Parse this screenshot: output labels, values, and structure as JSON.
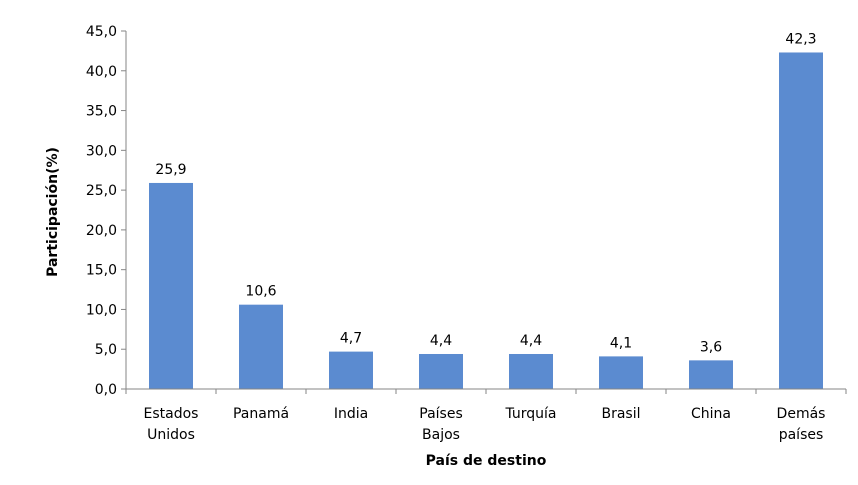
{
  "chart_data": {
    "type": "bar",
    "title": "",
    "xlabel": "País de destino",
    "ylabel": "Participación(%)",
    "ylim": [
      0,
      45
    ],
    "yticks": [
      "0,0",
      "5,0",
      "10,0",
      "15,0",
      "20,0",
      "25,0",
      "30,0",
      "35,0",
      "40,0",
      "45,0"
    ],
    "categories": [
      [
        "Estados",
        "Unidos"
      ],
      [
        "Panamá"
      ],
      [
        "India"
      ],
      [
        "Países",
        "Bajos"
      ],
      [
        "Turquía"
      ],
      [
        "Brasil"
      ],
      [
        "China"
      ],
      [
        "Demás",
        "países"
      ]
    ],
    "values": [
      25.9,
      10.6,
      4.7,
      4.4,
      4.4,
      4.1,
      3.6,
      42.3
    ],
    "data_labels": [
      "25,9",
      "10,6",
      "4,7",
      "4,4",
      "4,4",
      "4,1",
      "3,6",
      "42,3"
    ],
    "bar_color": "#5b8bd0",
    "grid": false,
    "legend": "none"
  }
}
